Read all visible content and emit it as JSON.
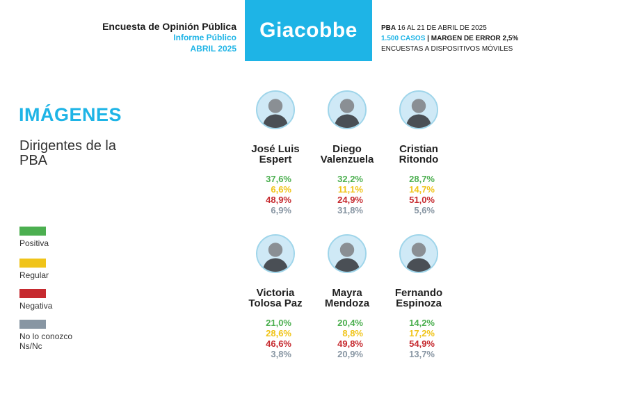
{
  "header": {
    "left_line1": "Encuesta de Opinión Pública",
    "left_line2": "Informe Público",
    "left_line3": "ABRIL 2025",
    "brand": "Giacobbe",
    "right_line1_bold": "PBA",
    "right_line1": "16 AL 21 DE ABRIL DE 2025",
    "right_line2_blue": "1.500 CASOS",
    "right_line2": "| MARGEN DE ERROR 2,5%",
    "right_line3": "ENCUESTAS A DISPOSITIVOS MÓVILES",
    "brand_color": "#1eb4e6"
  },
  "section": {
    "title": "IMÁGENES",
    "subtitle": "Dirigentes de la PBA"
  },
  "legend": [
    {
      "label": "Positiva",
      "color": "#4caf50"
    },
    {
      "label": "Regular",
      "color": "#f0c419"
    },
    {
      "label": "Negativa",
      "color": "#c62a2f"
    },
    {
      "label": "No lo conozco Ns/Nc",
      "color": "#8896a3"
    }
  ],
  "chart_data": {
    "type": "table",
    "categories": [
      "Positiva",
      "Regular",
      "Negativa",
      "No lo conozco Ns/Nc"
    ],
    "people": [
      {
        "name": "José Luis\nEspert",
        "values": [
          "37,6%",
          "6,6%",
          "48,9%",
          "6,9%"
        ]
      },
      {
        "name": "Diego\nValenzuela",
        "values": [
          "32,2%",
          "11,1%",
          "24,9%",
          "31,8%"
        ]
      },
      {
        "name": "Cristian\nRitondo",
        "values": [
          "28,7%",
          "14,7%",
          "51,0%",
          "5,6%"
        ]
      },
      {
        "name": "Victoria\nTolosa Paz",
        "values": [
          "21,0%",
          "28,6%",
          "46,6%",
          "3,8%"
        ]
      },
      {
        "name": "Mayra\nMendoza",
        "values": [
          "20,4%",
          "8,8%",
          "49,8%",
          "20,9%"
        ]
      },
      {
        "name": "Fernando\nEspinoza",
        "values": [
          "14,2%",
          "17,2%",
          "54,9%",
          "13,7%"
        ]
      }
    ]
  }
}
